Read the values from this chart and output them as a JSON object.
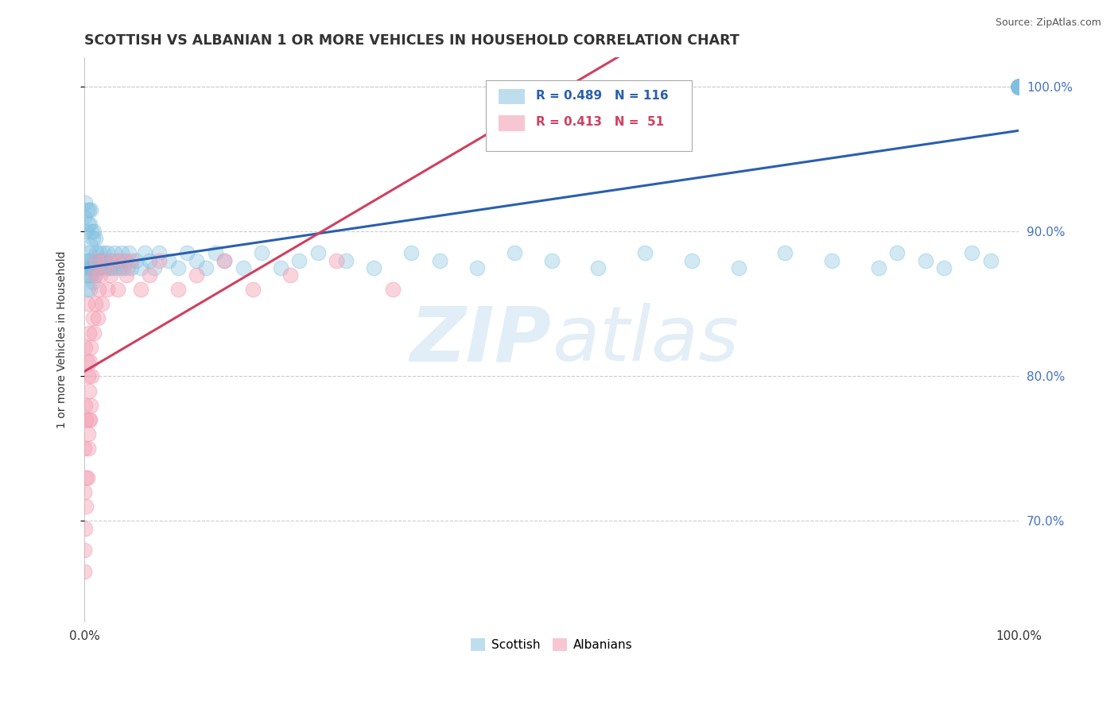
{
  "title": "SCOTTISH VS ALBANIAN 1 OR MORE VEHICLES IN HOUSEHOLD CORRELATION CHART",
  "source": "Source: ZipAtlas.com",
  "ylabel": "1 or more Vehicles in Household",
  "r_scottish": 0.489,
  "n_scottish": 116,
  "r_albanian": 0.413,
  "n_albanian": 51,
  "scottish_color": "#7fbfdf",
  "albanian_color": "#f4a0b5",
  "scottish_line_color": "#2a5faf",
  "albanian_line_color": "#d04060",
  "background_color": "#ffffff",
  "xlim": [
    0.0,
    1.0
  ],
  "ylim": [
    0.63,
    1.02
  ],
  "y_ticks": [
    0.7,
    0.8,
    0.9,
    1.0
  ],
  "x_ticks": [
    0.0,
    0.1,
    0.2,
    0.3,
    0.4,
    0.5,
    0.6,
    0.7,
    0.8,
    0.9,
    1.0
  ],
  "scottish_x": [
    0.0,
    0.0,
    0.001,
    0.001,
    0.002,
    0.002,
    0.003,
    0.003,
    0.003,
    0.004,
    0.004,
    0.005,
    0.005,
    0.005,
    0.006,
    0.006,
    0.006,
    0.007,
    0.007,
    0.007,
    0.008,
    0.008,
    0.009,
    0.009,
    0.01,
    0.01,
    0.011,
    0.012,
    0.012,
    0.013,
    0.014,
    0.015,
    0.016,
    0.017,
    0.018,
    0.02,
    0.021,
    0.022,
    0.024,
    0.025,
    0.027,
    0.028,
    0.03,
    0.032,
    0.034,
    0.036,
    0.038,
    0.04,
    0.042,
    0.044,
    0.046,
    0.048,
    0.05,
    0.055,
    0.06,
    0.065,
    0.07,
    0.075,
    0.08,
    0.09,
    0.1,
    0.11,
    0.12,
    0.13,
    0.14,
    0.15,
    0.17,
    0.19,
    0.21,
    0.23,
    0.25,
    0.28,
    0.31,
    0.35,
    0.38,
    0.42,
    0.46,
    0.5,
    0.55,
    0.6,
    0.65,
    0.7,
    0.75,
    0.8,
    0.85,
    0.87,
    0.9,
    0.92,
    0.95,
    0.97,
    1.0,
    1.0,
    1.0,
    1.0,
    1.0,
    1.0,
    1.0,
    1.0,
    1.0,
    1.0,
    1.0,
    1.0,
    1.0,
    1.0,
    1.0,
    1.0,
    1.0,
    1.0,
    1.0,
    1.0,
    1.0,
    1.0,
    1.0,
    1.0,
    1.0,
    1.0
  ],
  "scottish_y": [
    0.875,
    0.91,
    0.88,
    0.92,
    0.87,
    0.9,
    0.86,
    0.88,
    0.915,
    0.875,
    0.905,
    0.87,
    0.885,
    0.915,
    0.86,
    0.88,
    0.905,
    0.87,
    0.89,
    0.915,
    0.875,
    0.9,
    0.865,
    0.895,
    0.875,
    0.9,
    0.88,
    0.87,
    0.895,
    0.885,
    0.875,
    0.88,
    0.885,
    0.875,
    0.88,
    0.885,
    0.875,
    0.88,
    0.875,
    0.885,
    0.875,
    0.88,
    0.875,
    0.885,
    0.875,
    0.88,
    0.875,
    0.885,
    0.875,
    0.88,
    0.875,
    0.885,
    0.875,
    0.88,
    0.875,
    0.885,
    0.88,
    0.875,
    0.885,
    0.88,
    0.875,
    0.885,
    0.88,
    0.875,
    0.885,
    0.88,
    0.875,
    0.885,
    0.875,
    0.88,
    0.885,
    0.88,
    0.875,
    0.885,
    0.88,
    0.875,
    0.885,
    0.88,
    0.875,
    0.885,
    0.88,
    0.875,
    0.885,
    0.88,
    0.875,
    0.885,
    0.88,
    0.875,
    0.885,
    0.88,
    1.0,
    1.0,
    1.0,
    1.0,
    1.0,
    1.0,
    1.0,
    1.0,
    1.0,
    1.0,
    1.0,
    1.0,
    1.0,
    1.0,
    1.0,
    1.0,
    1.0,
    1.0,
    1.0,
    1.0,
    1.0,
    1.0,
    1.0,
    1.0,
    1.0,
    1.0
  ],
  "albanian_x": [
    0.0,
    0.0,
    0.0,
    0.001,
    0.001,
    0.002,
    0.002,
    0.003,
    0.003,
    0.004,
    0.004,
    0.005,
    0.005,
    0.006,
    0.006,
    0.007,
    0.007,
    0.008,
    0.009,
    0.01,
    0.011,
    0.012,
    0.013,
    0.014,
    0.015,
    0.017,
    0.019,
    0.022,
    0.025,
    0.028,
    0.032,
    0.036,
    0.04,
    0.045,
    0.05,
    0.06,
    0.07,
    0.08,
    0.1,
    0.12,
    0.15,
    0.18,
    0.22,
    0.27,
    0.33,
    0.0,
    0.001,
    0.002,
    0.003,
    0.004,
    0.005
  ],
  "albanian_y": [
    0.68,
    0.72,
    0.75,
    0.78,
    0.82,
    0.73,
    0.77,
    0.81,
    0.85,
    0.76,
    0.8,
    0.79,
    0.83,
    0.77,
    0.81,
    0.78,
    0.82,
    0.8,
    0.84,
    0.83,
    0.87,
    0.85,
    0.88,
    0.84,
    0.86,
    0.87,
    0.85,
    0.88,
    0.86,
    0.87,
    0.88,
    0.86,
    0.88,
    0.87,
    0.88,
    0.86,
    0.87,
    0.88,
    0.86,
    0.87,
    0.88,
    0.86,
    0.87,
    0.88,
    0.86,
    0.665,
    0.695,
    0.71,
    0.73,
    0.75,
    0.77
  ]
}
